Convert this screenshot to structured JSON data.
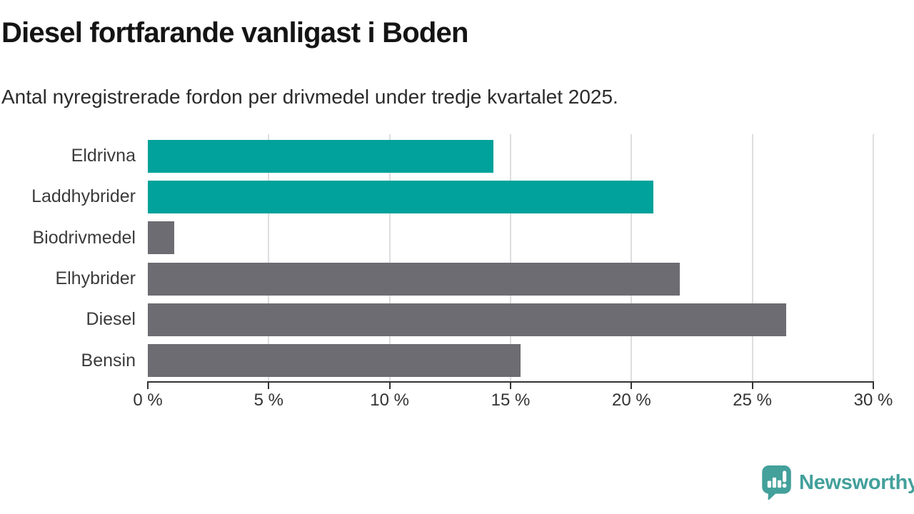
{
  "page": {
    "title": "Diesel fortfarande vanligast i Boden",
    "subtitle": "Antal nyregistrerade fordon per drivmedel under tredje kvartalet 2025."
  },
  "chart_data": {
    "type": "bar",
    "orientation": "horizontal",
    "title": "Diesel fortfarande vanligast i Boden",
    "subtitle": "Antal nyregistrerade fordon per drivmedel under tredje kvartalet 2025.",
    "categories": [
      "Eldrivna",
      "Laddhybrider",
      "Biodrivmedel",
      "Elhybrider",
      "Diesel",
      "Bensin"
    ],
    "values": [
      14.3,
      20.9,
      1.1,
      22.0,
      26.4,
      15.4
    ],
    "unit": "%",
    "bar_colors": [
      "#00a29b",
      "#00a29b",
      "#6c6c72",
      "#6c6c72",
      "#6c6c72",
      "#6c6c72"
    ],
    "highlight_color": "#00a29b",
    "default_color": "#6c6c72",
    "xlim": [
      0,
      30
    ],
    "x_ticks": [
      0,
      5,
      10,
      15,
      20,
      25,
      30
    ],
    "x_tick_labels": [
      "0 %",
      "5 %",
      "10 %",
      "15 %",
      "20 %",
      "25 %",
      "30 %"
    ],
    "grid": "vertical-gridlines-on",
    "gridline_color": "#dedede",
    "axis_color": "#333333",
    "legend": "none"
  },
  "branding": {
    "logo_text": "Newsworthy",
    "logo_color": "#43a09b",
    "logo_icon": "newsworthy-bubble-chart-icon"
  }
}
